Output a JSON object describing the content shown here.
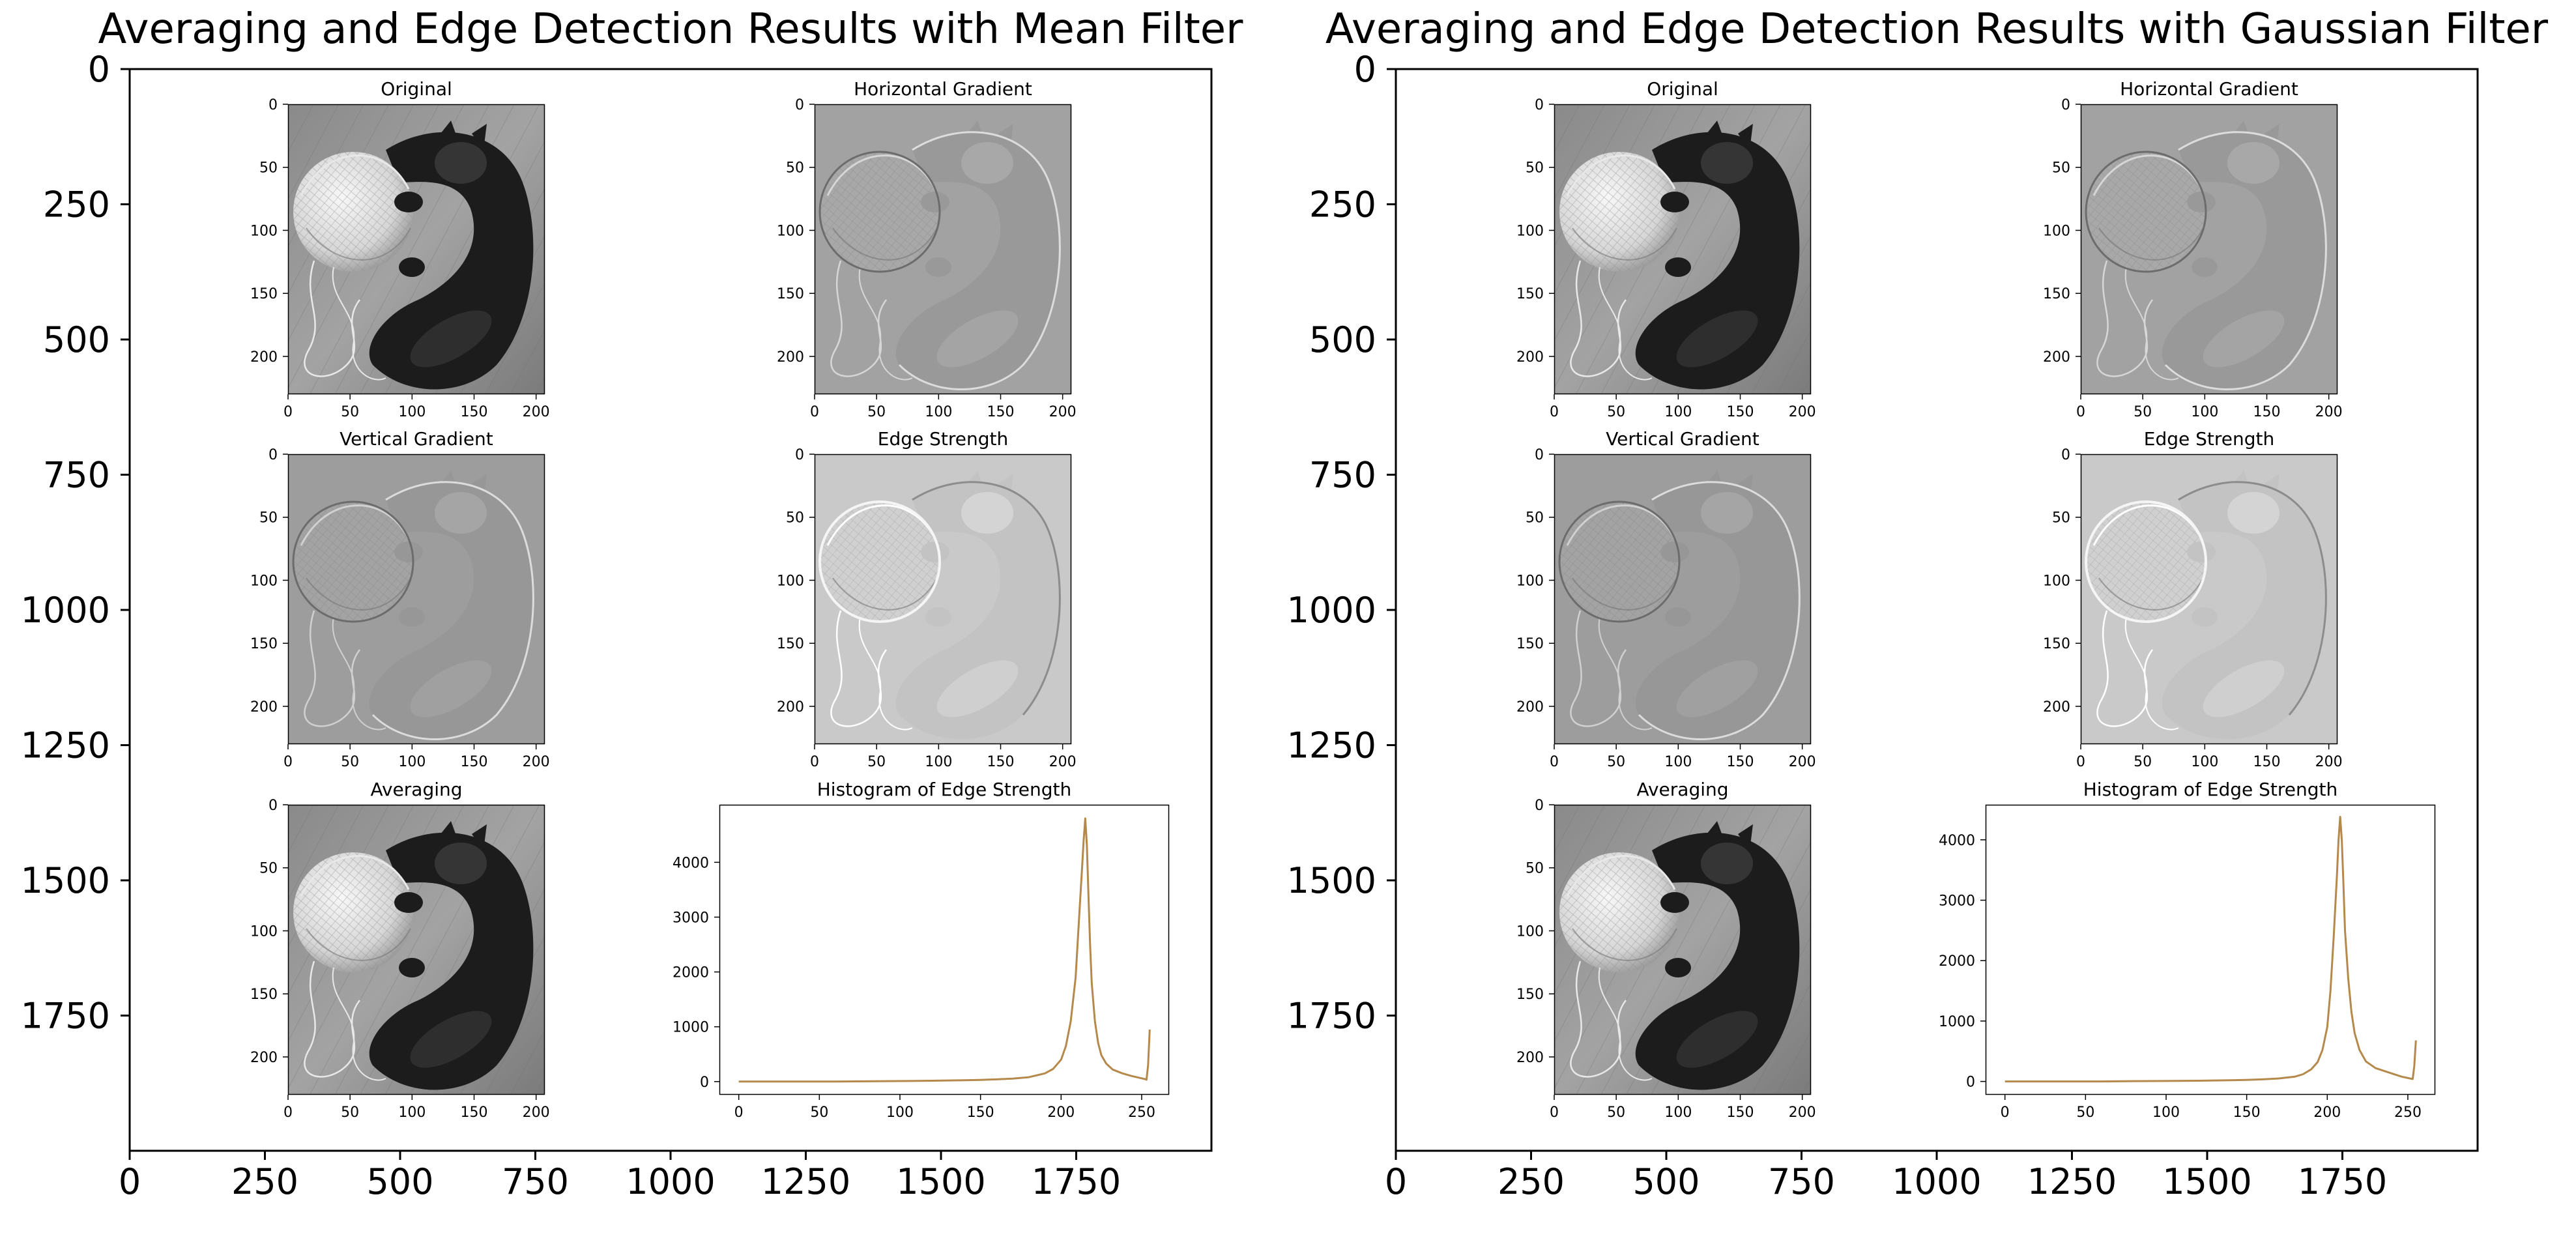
{
  "figures": [
    {
      "title": "Averaging and Edge Detection Results with Mean Filter",
      "outer_ticks": {
        "x": [
          "0",
          "250",
          "500",
          "750",
          "1000",
          "1250",
          "1500",
          "1750"
        ],
        "y": [
          "0",
          "250",
          "500",
          "750",
          "1000",
          "1250",
          "1500",
          "1750"
        ]
      },
      "panels": [
        {
          "title": "Original",
          "kind": "original"
        },
        {
          "title": "Horizontal Gradient",
          "kind": "hgrad"
        },
        {
          "title": "Vertical Gradient",
          "kind": "vgrad"
        },
        {
          "title": "Edge Strength",
          "kind": "edge"
        },
        {
          "title": "Averaging",
          "kind": "original"
        }
      ],
      "image_ticks": {
        "x": [
          "0",
          "50",
          "100",
          "150",
          "200"
        ],
        "y": [
          "0",
          "50",
          "100",
          "150",
          "200"
        ]
      }
    },
    {
      "title": "Averaging and Edge Detection Results with Gaussian Filter",
      "outer_ticks": {
        "x": [
          "0",
          "250",
          "500",
          "750",
          "1000",
          "1250",
          "1500",
          "1750"
        ],
        "y": [
          "0",
          "250",
          "500",
          "750",
          "1000",
          "1250",
          "1500",
          "1750"
        ]
      },
      "panels": [
        {
          "title": "Original",
          "kind": "original"
        },
        {
          "title": "Horizontal Gradient",
          "kind": "hgrad"
        },
        {
          "title": "Vertical Gradient",
          "kind": "vgrad"
        },
        {
          "title": "Edge Strength",
          "kind": "edge"
        },
        {
          "title": "Averaging",
          "kind": "original"
        }
      ],
      "image_ticks": {
        "x": [
          "0",
          "50",
          "100",
          "150",
          "200"
        ],
        "y": [
          "0",
          "50",
          "100",
          "150",
          "200"
        ]
      }
    }
  ],
  "chart_data": [
    {
      "type": "line",
      "title": "Histogram of Edge Strength",
      "x": [
        0,
        20,
        40,
        60,
        80,
        100,
        120,
        140,
        150,
        160,
        170,
        180,
        190,
        195,
        200,
        203,
        206,
        209,
        211,
        213,
        214,
        215,
        216,
        217,
        218,
        219,
        221,
        223,
        225,
        228,
        232,
        238,
        244,
        250,
        252,
        253,
        254,
        255
      ],
      "y": [
        0,
        0,
        0,
        0,
        5,
        10,
        15,
        25,
        30,
        40,
        55,
        80,
        150,
        230,
        400,
        650,
        1100,
        1900,
        2900,
        3900,
        4400,
        4800,
        4300,
        3400,
        2500,
        1800,
        1100,
        700,
        480,
        330,
        220,
        150,
        100,
        60,
        45,
        35,
        300,
        950
      ],
      "xticks": [
        "0",
        "50",
        "100",
        "150",
        "200",
        "250"
      ],
      "yticks": [
        "0",
        "1000",
        "2000",
        "3000",
        "4000"
      ],
      "xlim": [
        -12,
        267
      ],
      "ylim": [
        -240,
        5050
      ],
      "color": "#b5894b"
    },
    {
      "type": "line",
      "title": "Histogram of Edge Strength",
      "x": [
        0,
        20,
        40,
        60,
        80,
        100,
        120,
        140,
        150,
        160,
        170,
        180,
        185,
        190,
        194,
        197,
        200,
        202,
        204,
        206,
        207,
        208,
        209,
        210,
        211,
        213,
        215,
        217,
        220,
        224,
        230,
        238,
        246,
        252,
        253,
        254,
        255
      ],
      "y": [
        0,
        0,
        0,
        0,
        5,
        8,
        12,
        20,
        25,
        35,
        50,
        80,
        120,
        200,
        320,
        520,
        900,
        1500,
        2400,
        3400,
        4000,
        4380,
        4000,
        3300,
        2500,
        1700,
        1150,
        800,
        520,
        330,
        220,
        150,
        80,
        45,
        40,
        250,
        680
      ],
      "xticks": [
        "0",
        "50",
        "100",
        "150",
        "200",
        "250"
      ],
      "yticks": [
        "0",
        "1000",
        "2000",
        "3000",
        "4000"
      ],
      "xlim": [
        -12,
        267
      ],
      "ylim": [
        -220,
        4580
      ],
      "color": "#b5894b"
    }
  ]
}
